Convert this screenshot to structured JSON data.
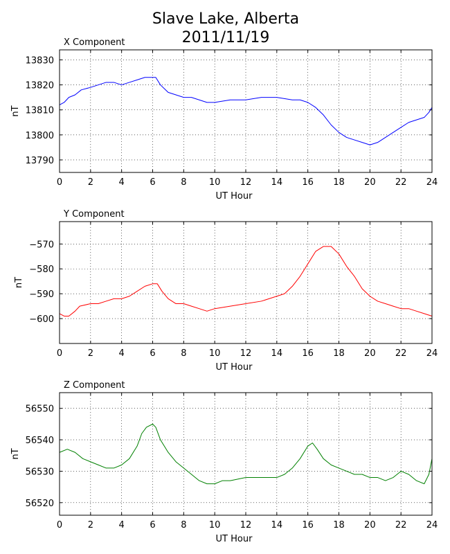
{
  "figure": {
    "title_line1": "Slave Lake, Alberta",
    "title_line2": "2011/11/19"
  },
  "chart_data": [
    {
      "type": "line",
      "title": "X Component",
      "xlabel": "UT Hour",
      "ylabel": "nT",
      "xlim": [
        0,
        24
      ],
      "ylim": [
        13785,
        13834
      ],
      "xticks": [
        0,
        2,
        4,
        6,
        8,
        10,
        12,
        14,
        16,
        18,
        20,
        22,
        24
      ],
      "yticks": [
        13790,
        13800,
        13810,
        13820,
        13830
      ],
      "grid": true,
      "color": "#0000ff",
      "series": [
        {
          "x": [
            0,
            0.3,
            0.6,
            1.0,
            1.4,
            2.0,
            2.5,
            3.0,
            3.5,
            4.0,
            4.5,
            5.0,
            5.5,
            6.0,
            6.2,
            6.5,
            7.0,
            7.5,
            8.0,
            8.5,
            9.0,
            9.5,
            10.0,
            11.0,
            12.0,
            13.0,
            14.0,
            15.0,
            15.5,
            16.0,
            16.5,
            17.0,
            17.5,
            18.0,
            18.5,
            19.0,
            19.5,
            20.0,
            20.5,
            21.0,
            21.5,
            22.0,
            22.5,
            23.0,
            23.5,
            23.8,
            24.0
          ],
          "y": [
            13812,
            13813,
            13815,
            13816,
            13818,
            13819,
            13820,
            13821,
            13821,
            13820,
            13821,
            13822,
            13823,
            13823,
            13823,
            13820,
            13817,
            13816,
            13815,
            13815,
            13814,
            13813,
            13813,
            13814,
            13814,
            13815,
            13815,
            13814,
            13814,
            13813,
            13811,
            13808,
            13804,
            13801,
            13799,
            13798,
            13797,
            13796,
            13797,
            13799,
            13801,
            13803,
            13805,
            13806,
            13807,
            13809,
            13811
          ]
        }
      ]
    },
    {
      "type": "line",
      "title": "Y Component",
      "xlabel": "UT Hour",
      "ylabel": "nT",
      "xlim": [
        0,
        24
      ],
      "ylim": [
        -610,
        -561
      ],
      "xticks": [
        0,
        2,
        4,
        6,
        8,
        10,
        12,
        14,
        16,
        18,
        20,
        22,
        24
      ],
      "yticks": [
        -600,
        -590,
        -580,
        -570
      ],
      "grid": true,
      "color": "#ff0000",
      "series": [
        {
          "x": [
            0,
            0.3,
            0.6,
            1.0,
            1.3,
            2.0,
            2.5,
            3.0,
            3.5,
            4.0,
            4.5,
            5.0,
            5.5,
            6.0,
            6.3,
            6.6,
            7.0,
            7.5,
            8.0,
            8.5,
            9.0,
            9.5,
            10.0,
            11.0,
            12.0,
            13.0,
            14.0,
            14.5,
            15.0,
            15.5,
            16.0,
            16.5,
            17.0,
            17.5,
            18.0,
            18.5,
            19.0,
            19.5,
            20.0,
            20.5,
            21.0,
            21.5,
            22.0,
            22.5,
            23.0,
            23.5,
            24.0
          ],
          "y": [
            -598,
            -599,
            -599,
            -597,
            -595,
            -594,
            -594,
            -593,
            -592,
            -592,
            -591,
            -589,
            -587,
            -586,
            -586,
            -589,
            -592,
            -594,
            -594,
            -595,
            -596,
            -597,
            -596,
            -595,
            -594,
            -593,
            -591,
            -590,
            -587,
            -583,
            -578,
            -573,
            -571,
            -571,
            -574,
            -579,
            -583,
            -588,
            -591,
            -593,
            -594,
            -595,
            -596,
            -596,
            -597,
            -598,
            -599
          ]
        }
      ]
    },
    {
      "type": "line",
      "title": "Z Component",
      "xlabel": "UT Hour",
      "ylabel": "nT",
      "xlim": [
        0,
        24
      ],
      "ylim": [
        56516,
        56555
      ],
      "xticks": [
        0,
        2,
        4,
        6,
        8,
        10,
        12,
        14,
        16,
        18,
        20,
        22,
        24
      ],
      "yticks": [
        56520,
        56530,
        56540,
        56550
      ],
      "grid": true,
      "color": "#008000",
      "series": [
        {
          "x": [
            0,
            0.5,
            1.0,
            1.5,
            2.0,
            2.5,
            3.0,
            3.5,
            4.0,
            4.5,
            5.0,
            5.3,
            5.6,
            6.0,
            6.2,
            6.5,
            7.0,
            7.5,
            8.0,
            8.5,
            9.0,
            9.5,
            10.0,
            10.5,
            11.0,
            12.0,
            13.0,
            14.0,
            14.5,
            15.0,
            15.5,
            16.0,
            16.3,
            16.6,
            17.0,
            17.5,
            18.0,
            18.5,
            19.0,
            19.5,
            20.0,
            20.5,
            21.0,
            21.5,
            22.0,
            22.5,
            23.0,
            23.5,
            23.8,
            24.0
          ],
          "y": [
            56536,
            56537,
            56536,
            56534,
            56533,
            56532,
            56531,
            56531,
            56532,
            56534,
            56538,
            56542,
            56544,
            56545,
            56544,
            56540,
            56536,
            56533,
            56531,
            56529,
            56527,
            56526,
            56526,
            56527,
            56527,
            56528,
            56528,
            56528,
            56529,
            56531,
            56534,
            56538,
            56539,
            56537,
            56534,
            56532,
            56531,
            56530,
            56529,
            56529,
            56528,
            56528,
            56527,
            56528,
            56530,
            56529,
            56527,
            56526,
            56529,
            56534
          ]
        }
      ]
    }
  ]
}
